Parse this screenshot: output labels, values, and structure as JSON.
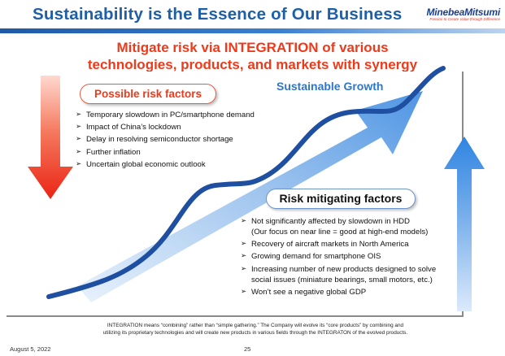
{
  "title": "Sustainability is the Essence of Our Business",
  "logo": {
    "name": "MinebeaMitsumi",
    "tagline": "Passion to Create Value through Difference"
  },
  "headline": [
    "Mitigate risk via INTEGRATION of various",
    "technologies, products, and markets with synergy"
  ],
  "growth_label": "Sustainable Growth",
  "risk": {
    "label": "Possible risk factors",
    "items": [
      "Temporary slowdown in PC/smartphone demand",
      "Impact of China’s lockdown",
      "Delay in resolving semiconductor shortage",
      "Further inflation",
      "Uncertain global economic outlook"
    ]
  },
  "mitigation": {
    "label": "Risk mitigating factors",
    "items": [
      "Not significantly affected by slowdown in HDD",
      "(Our focus on near line = good at high-end models)",
      "Recovery of aircraft markets in North America",
      "Growing demand for smartphone OIS",
      "Increasing number of new products designed to solve social issues (miniature bearings, small motors, etc.)",
      "Won’t see a negative global GDP"
    ]
  },
  "footnote": [
    "INTEGRATION means “combining” rather than “simple gathering.” The Company will evolve its “core products” by combining and",
    "utilizing its proprietary technologies and will create new products in various fields through the INTEGRATON of the evolved products."
  ],
  "footer": {
    "date": "August 5, 2022",
    "page": "25"
  },
  "colors": {
    "title_blue": "#1f5fa8",
    "headline_red": "#ee3a1b",
    "curve_blue": "#1e4fa0",
    "arrow_blue": "#3d8fe6",
    "arrow_red": "#ee2a1a"
  }
}
